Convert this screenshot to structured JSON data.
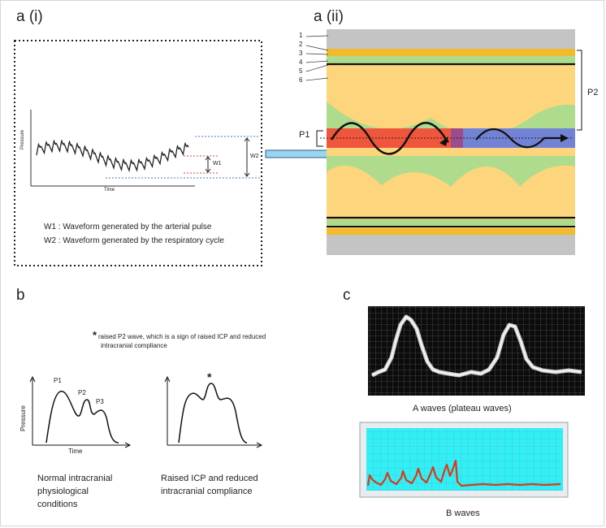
{
  "panels": {
    "a_i": "a (i)",
    "a_ii": "a (ii)",
    "b": "b",
    "c": "c"
  },
  "panel_a_i": {
    "y_axis": "Pressure",
    "x_axis": "Time",
    "w1": "W1",
    "w2": "W2",
    "legend_w1": "W1 : Waveform generated by the arterial pulse",
    "legend_w2": "W2 : Waveform generated by the respiratory cycle"
  },
  "panel_a_ii": {
    "layers": [
      "1",
      "2",
      "3",
      "4",
      "5",
      "6"
    ],
    "p1": "P1",
    "p2": "P2"
  },
  "panel_b": {
    "note_star": "*",
    "note_line1": "raised P2 wave, which is a sign of raised ICP and reduced",
    "note_line2": "intracranial compliance",
    "normal_chart": {
      "y_axis": "Pressure",
      "x_axis": "Time",
      "peaks": [
        "P1",
        "P2",
        "P3"
      ]
    },
    "raised_star": "*",
    "caption_normal": [
      "Normal intracranial",
      "physiological",
      "conditions"
    ],
    "caption_raised": [
      "Raised ICP and reduced",
      "intracranial compliance"
    ]
  },
  "panel_c": {
    "caption_a": "A waves (plateau waves)",
    "caption_b": "B waves"
  },
  "colors": {
    "skull_gray": "#c4c4c4",
    "gold": "#f2bb2e",
    "green": "#aedc8c",
    "brain_yellow": "#fdd57c",
    "artery_red": "#f0563c",
    "vein_blue": "#7282d4",
    "connector_blue": "#9ad4ee",
    "monitor_cyan": "#2ef0f6",
    "trace_red": "#d83a1a"
  }
}
